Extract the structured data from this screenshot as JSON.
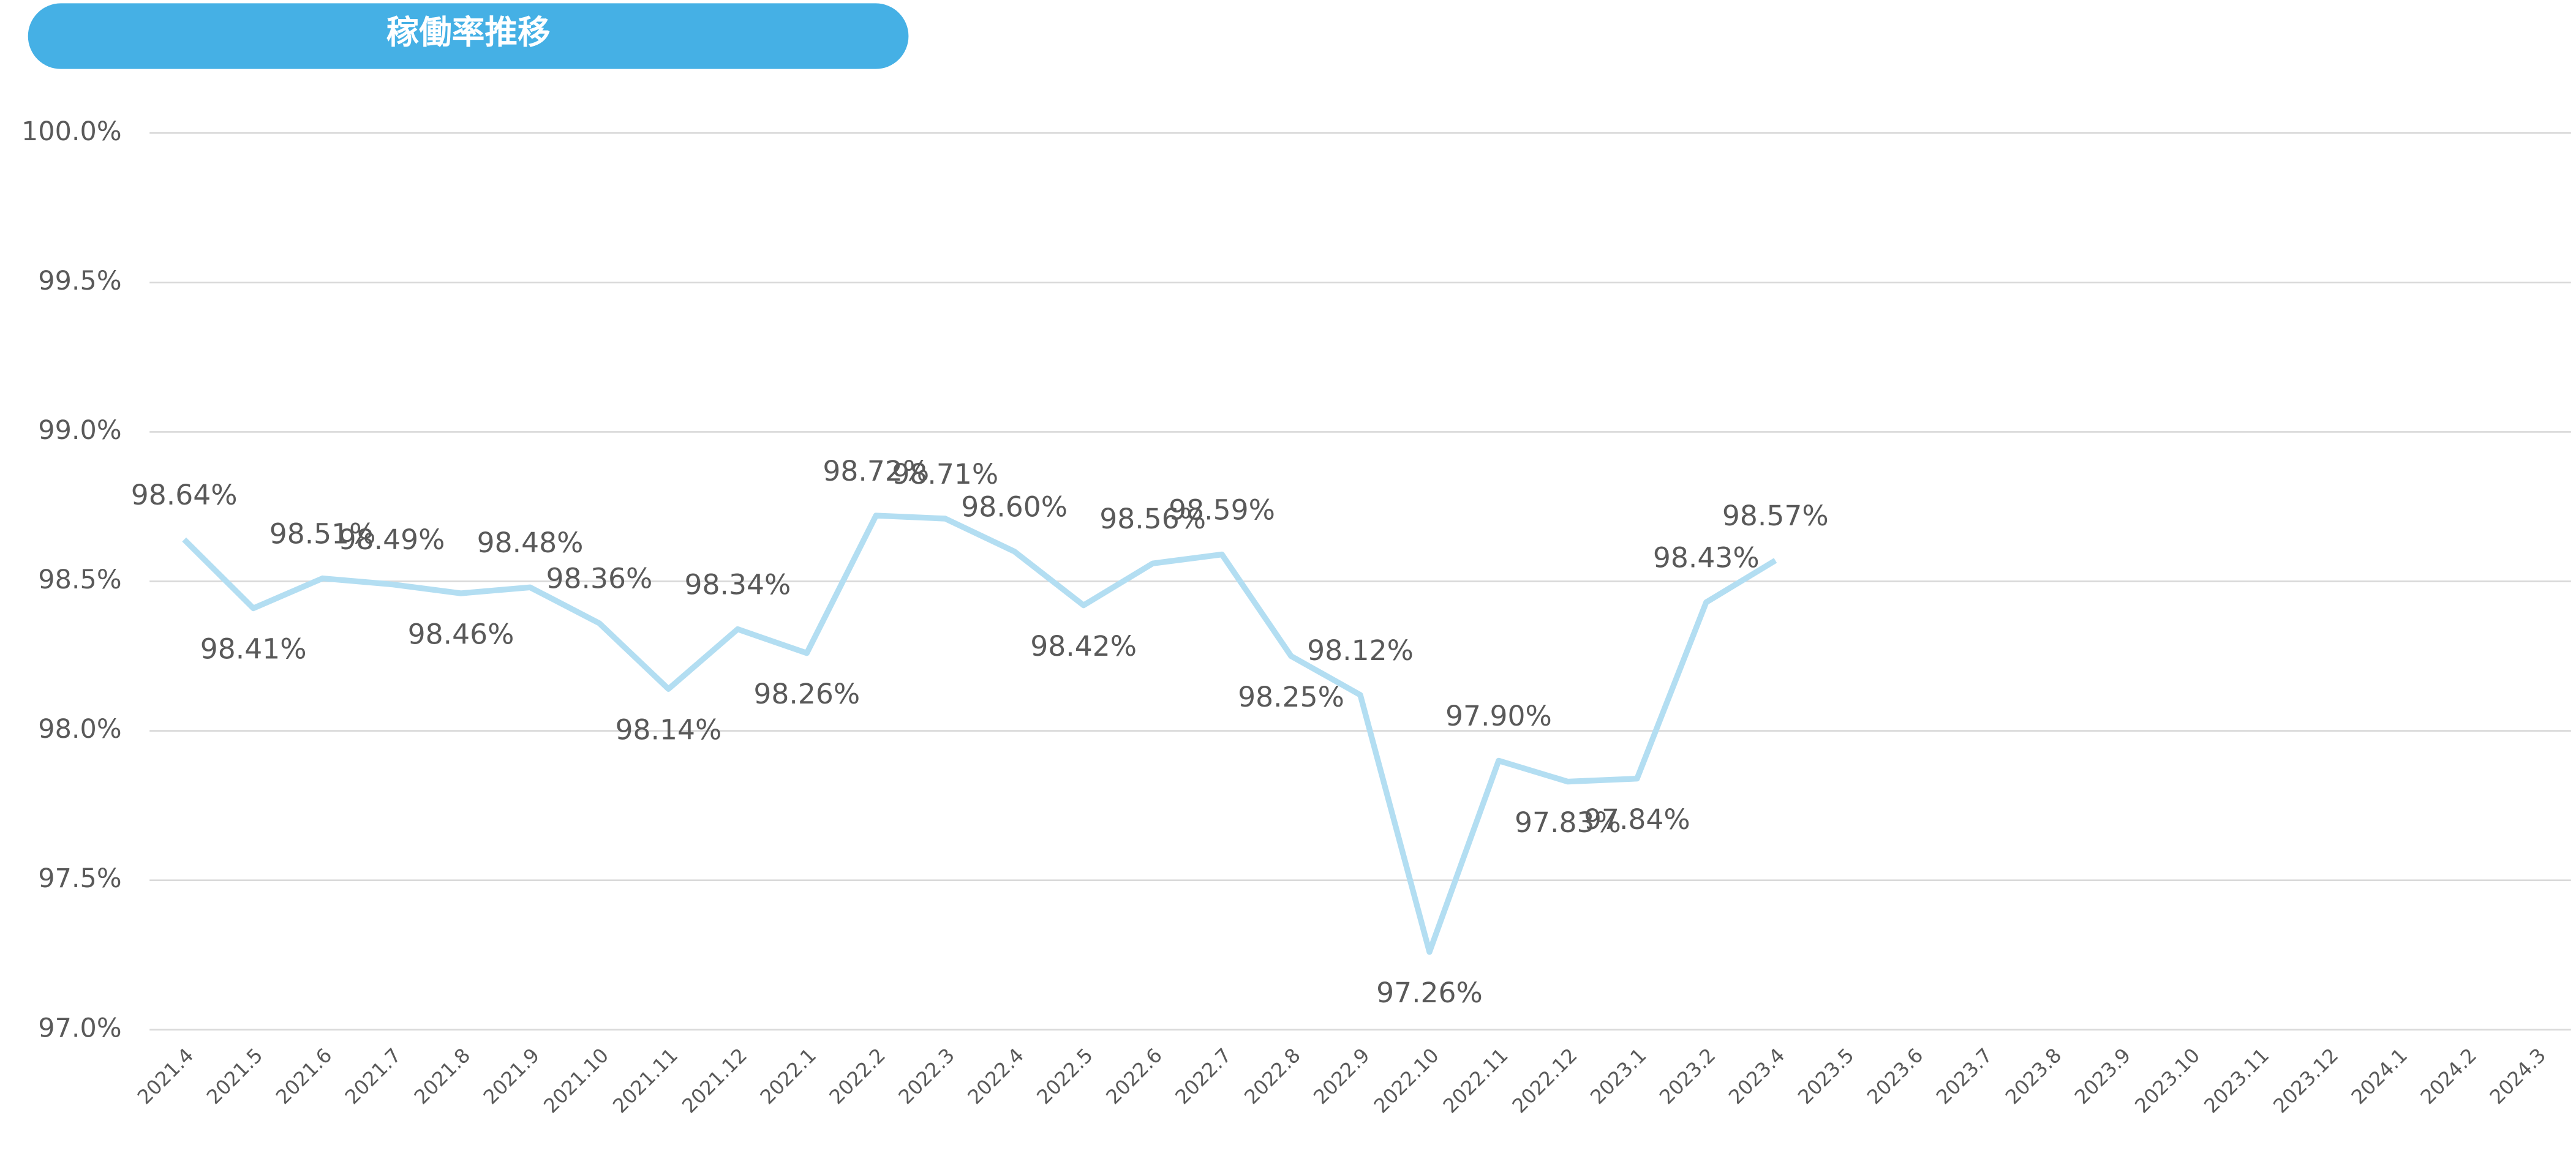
{
  "chart_data": {
    "type": "line",
    "title": "稼働率推移",
    "categories": [
      "2021.4",
      "2021.5",
      "2021.6",
      "2021.7",
      "2021.8",
      "2021.9",
      "2021.10",
      "2021.11",
      "2021.12",
      "2022.1",
      "2022.2",
      "2022.3",
      "2022.4",
      "2022.5",
      "2022.6",
      "2022.7",
      "2022.8",
      "2022.9",
      "2022.10",
      "2022.11",
      "2022.12",
      "2023.1",
      "2023.2",
      "2023.4",
      "2023.5",
      "2023.6",
      "2023.7",
      "2023.8",
      "2023.9",
      "2023.10",
      "2023.11",
      "2023.12",
      "2024.1",
      "2024.2",
      "2024.3"
    ],
    "values": [
      98.64,
      98.41,
      98.51,
      98.49,
      98.46,
      98.48,
      98.36,
      98.14,
      98.34,
      98.26,
      98.72,
      98.71,
      98.6,
      98.42,
      98.56,
      98.59,
      98.25,
      98.12,
      97.26,
      97.9,
      97.83,
      97.84,
      98.43,
      98.57,
      null,
      null,
      null,
      null,
      null,
      null,
      null,
      null,
      null,
      null,
      null
    ],
    "value_labels": [
      "98.64%",
      "98.41%",
      "98.51%",
      "98.49%",
      "98.46%",
      "98.48%",
      "98.36%",
      "98.14%",
      "98.34%",
      "98.26%",
      "98.72%",
      "98.71%",
      "98.60%",
      "98.42%",
      "98.56%",
      "98.59%",
      "98.25%",
      "98.12%",
      "97.26%",
      "97.90%",
      "97.83%",
      "97.84%",
      "98.43%",
      "98.57%",
      null,
      null,
      null,
      null,
      null,
      null,
      null,
      null,
      null,
      null,
      null
    ],
    "color": "#b3def2",
    "ylim": [
      97,
      100
    ],
    "yticks": [
      {
        "value": 97,
        "label": "97.0%"
      },
      {
        "value": 97.5,
        "label": "97.5%"
      },
      {
        "value": 98,
        "label": "98.0%"
      },
      {
        "value": 98.5,
        "label": "98.5%"
      },
      {
        "value": 99,
        "label": "99.0%"
      },
      {
        "value": 99.5,
        "label": "99.5%"
      },
      {
        "value": 100,
        "label": "100.0%"
      }
    ],
    "grid": true
  }
}
